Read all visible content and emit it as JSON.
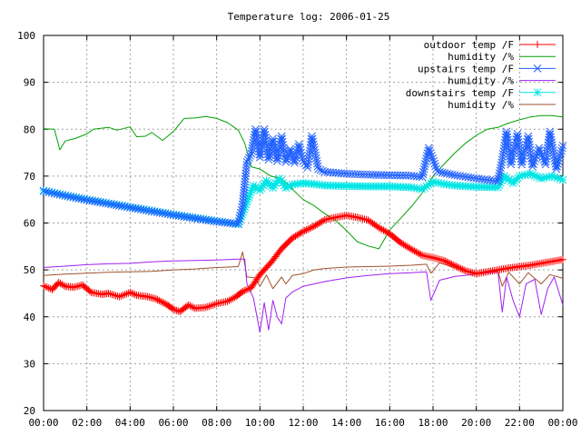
{
  "chart_data": {
    "type": "line",
    "title": "Temperature log: 2006-01-25",
    "xlabel": "",
    "ylabel": "",
    "xlim": [
      0,
      24
    ],
    "ylim": [
      20,
      100
    ],
    "grid": true,
    "legend_position": "top-right",
    "x_ticks": [
      0,
      2,
      4,
      6,
      8,
      10,
      12,
      14,
      16,
      18,
      20,
      22,
      24
    ],
    "x_tick_labels": [
      "00:00",
      "02:00",
      "04:00",
      "06:00",
      "08:00",
      "10:00",
      "12:00",
      "14:00",
      "16:00",
      "18:00",
      "20:00",
      "22:00",
      "00:00"
    ],
    "y_ticks": [
      20,
      30,
      40,
      50,
      60,
      70,
      80,
      90,
      100
    ],
    "y_tick_labels": [
      "20",
      "30",
      "40",
      "50",
      "60",
      "70",
      "80",
      "90",
      "100"
    ],
    "series": [
      {
        "name": "outdoor temp /F",
        "color": "#ff0000",
        "marker": "plus",
        "points": [
          [
            0,
            46.6
          ],
          [
            0.4,
            45.8
          ],
          [
            0.7,
            47.3
          ],
          [
            1.0,
            46.5
          ],
          [
            1.4,
            46.3
          ],
          [
            1.8,
            46.8
          ],
          [
            2.2,
            45.2
          ],
          [
            2.7,
            44.8
          ],
          [
            3.0,
            45.0
          ],
          [
            3.5,
            44.3
          ],
          [
            4.0,
            45.2
          ],
          [
            4.3,
            44.6
          ],
          [
            4.8,
            44.3
          ],
          [
            5.2,
            43.8
          ],
          [
            5.7,
            42.6
          ],
          [
            6.0,
            41.6
          ],
          [
            6.3,
            41.1
          ],
          [
            6.7,
            42.5
          ],
          [
            7.0,
            41.8
          ],
          [
            7.5,
            42.0
          ],
          [
            8.0,
            42.8
          ],
          [
            8.5,
            43.3
          ],
          [
            8.9,
            44.3
          ],
          [
            9.2,
            45.4
          ],
          [
            9.6,
            46.2
          ],
          [
            10.0,
            49.0
          ],
          [
            10.5,
            51.5
          ],
          [
            11.0,
            54.5
          ],
          [
            11.5,
            56.8
          ],
          [
            12.0,
            58.2
          ],
          [
            12.5,
            59.3
          ],
          [
            13.0,
            60.7
          ],
          [
            13.5,
            61.2
          ],
          [
            14.0,
            61.6
          ],
          [
            14.5,
            61.2
          ],
          [
            15.0,
            60.6
          ],
          [
            15.5,
            59.0
          ],
          [
            16.0,
            57.7
          ],
          [
            16.5,
            55.8
          ],
          [
            17.0,
            54.4
          ],
          [
            17.5,
            53.1
          ],
          [
            18.0,
            52.6
          ],
          [
            18.5,
            52.0
          ],
          [
            19.0,
            50.9
          ],
          [
            19.5,
            49.8
          ],
          [
            20.0,
            49.2
          ],
          [
            20.5,
            49.6
          ],
          [
            21.0,
            50.0
          ],
          [
            21.5,
            50.4
          ],
          [
            22.0,
            50.7
          ],
          [
            22.5,
            51.0
          ],
          [
            23.0,
            51.4
          ],
          [
            23.5,
            51.8
          ],
          [
            24.0,
            52.2
          ]
        ]
      },
      {
        "name": "humidity /%",
        "color": "#00a000",
        "marker": "none",
        "points": [
          [
            0,
            80.1
          ],
          [
            0.5,
            80.0
          ],
          [
            0.75,
            75.6
          ],
          [
            1.0,
            77.5
          ],
          [
            1.5,
            78.1
          ],
          [
            2.0,
            79.0
          ],
          [
            2.3,
            80.0
          ],
          [
            3.0,
            80.4
          ],
          [
            3.4,
            79.8
          ],
          [
            4.0,
            80.5
          ],
          [
            4.3,
            78.4
          ],
          [
            4.7,
            78.5
          ],
          [
            5.0,
            79.3
          ],
          [
            5.5,
            77.6
          ],
          [
            6.0,
            79.5
          ],
          [
            6.5,
            82.3
          ],
          [
            7.0,
            82.4
          ],
          [
            7.5,
            82.7
          ],
          [
            8.0,
            82.3
          ],
          [
            8.5,
            81.4
          ],
          [
            9.0,
            79.8
          ],
          [
            9.3,
            77.0
          ],
          [
            9.6,
            72.0
          ],
          [
            10.0,
            71.5
          ],
          [
            10.5,
            70.0
          ],
          [
            11.0,
            69.5
          ],
          [
            11.5,
            67.2
          ],
          [
            12.0,
            65.0
          ],
          [
            12.5,
            63.7
          ],
          [
            13.0,
            62.0
          ],
          [
            13.5,
            60.5
          ],
          [
            14.0,
            58.4
          ],
          [
            14.5,
            56.0
          ],
          [
            15.0,
            55.1
          ],
          [
            15.5,
            54.5
          ],
          [
            16.0,
            58.5
          ],
          [
            16.5,
            61.0
          ],
          [
            17.0,
            63.5
          ],
          [
            17.5,
            66.4
          ],
          [
            18.0,
            70.0
          ],
          [
            18.5,
            72.5
          ],
          [
            19.0,
            74.9
          ],
          [
            19.5,
            77.0
          ],
          [
            20.0,
            78.7
          ],
          [
            20.5,
            80.0
          ],
          [
            21.0,
            80.4
          ],
          [
            21.5,
            81.3
          ],
          [
            22.0,
            82.0
          ],
          [
            22.5,
            82.6
          ],
          [
            23.0,
            82.9
          ],
          [
            23.5,
            82.9
          ],
          [
            24.0,
            82.6
          ]
        ]
      },
      {
        "name": "upstairs temp /F",
        "color": "#2060ff",
        "marker": "cross",
        "points": [
          [
            0,
            66.8
          ],
          [
            1.0,
            65.8
          ],
          [
            2.0,
            64.9
          ],
          [
            3.0,
            64.1
          ],
          [
            4.0,
            63.3
          ],
          [
            5.0,
            62.5
          ],
          [
            6.0,
            61.7
          ],
          [
            7.0,
            61.0
          ],
          [
            8.0,
            60.3
          ],
          [
            9.0,
            59.8
          ],
          [
            9.2,
            64.0
          ],
          [
            9.4,
            73.0
          ],
          [
            9.6,
            74.8
          ],
          [
            9.8,
            80.0
          ],
          [
            10.0,
            74.0
          ],
          [
            10.2,
            80.0
          ],
          [
            10.4,
            73.5
          ],
          [
            10.6,
            78.0
          ],
          [
            10.8,
            73.2
          ],
          [
            11.0,
            78.5
          ],
          [
            11.2,
            73.0
          ],
          [
            11.4,
            75.8
          ],
          [
            11.6,
            72.8
          ],
          [
            11.8,
            76.8
          ],
          [
            12.0,
            73.2
          ],
          [
            12.2,
            71.8
          ],
          [
            12.4,
            78.5
          ],
          [
            12.7,
            71.5
          ],
          [
            13.0,
            70.9
          ],
          [
            14.0,
            70.5
          ],
          [
            15.0,
            70.3
          ],
          [
            16.0,
            70.2
          ],
          [
            17.0,
            70.1
          ],
          [
            17.5,
            69.8
          ],
          [
            17.8,
            76.0
          ],
          [
            18.2,
            71.0
          ],
          [
            19.0,
            70.2
          ],
          [
            20.0,
            69.5
          ],
          [
            21.0,
            68.9
          ],
          [
            21.2,
            73.5
          ],
          [
            21.4,
            79.5
          ],
          [
            21.6,
            72.5
          ],
          [
            21.9,
            79.0
          ],
          [
            22.1,
            72.5
          ],
          [
            22.4,
            78.5
          ],
          [
            22.6,
            72.0
          ],
          [
            22.9,
            76.0
          ],
          [
            23.2,
            72.5
          ],
          [
            23.4,
            79.5
          ],
          [
            23.7,
            71.5
          ],
          [
            24.0,
            76.5
          ]
        ]
      },
      {
        "name": "humidity /%",
        "color": "#a020f0",
        "marker": "none",
        "points": [
          [
            0,
            50.5
          ],
          [
            1.0,
            50.8
          ],
          [
            2.0,
            51.1
          ],
          [
            3.0,
            51.3
          ],
          [
            4.0,
            51.4
          ],
          [
            5.0,
            51.7
          ],
          [
            6.0,
            51.9
          ],
          [
            7.0,
            52.0
          ],
          [
            8.0,
            52.1
          ],
          [
            9.0,
            52.3
          ],
          [
            9.3,
            52.3
          ],
          [
            9.4,
            47.0
          ],
          [
            9.7,
            44.0
          ],
          [
            10.0,
            36.7
          ],
          [
            10.2,
            43.0
          ],
          [
            10.4,
            37.2
          ],
          [
            10.6,
            43.5
          ],
          [
            10.8,
            40.0
          ],
          [
            11.0,
            38.5
          ],
          [
            11.2,
            44.0
          ],
          [
            11.5,
            45.3
          ],
          [
            12.0,
            46.5
          ],
          [
            13.0,
            47.5
          ],
          [
            14.0,
            48.3
          ],
          [
            15.0,
            48.8
          ],
          [
            16.0,
            49.2
          ],
          [
            17.0,
            49.4
          ],
          [
            17.7,
            49.6
          ],
          [
            17.9,
            43.5
          ],
          [
            18.3,
            47.8
          ],
          [
            19.0,
            48.6
          ],
          [
            20.0,
            49.1
          ],
          [
            21.0,
            49.6
          ],
          [
            21.2,
            41.0
          ],
          [
            21.4,
            48.5
          ],
          [
            21.7,
            43.5
          ],
          [
            22.0,
            40.0
          ],
          [
            22.3,
            47.0
          ],
          [
            22.7,
            48.0
          ],
          [
            23.0,
            40.5
          ],
          [
            23.3,
            46.0
          ],
          [
            23.6,
            48.5
          ],
          [
            24.0,
            42.5
          ]
        ]
      },
      {
        "name": "downstairs temp /F",
        "color": "#00e5e5",
        "marker": "star",
        "points": [
          [
            0,
            66.9
          ],
          [
            1.0,
            65.9
          ],
          [
            2.0,
            65.0
          ],
          [
            3.0,
            64.2
          ],
          [
            4.0,
            63.4
          ],
          [
            5.0,
            62.6
          ],
          [
            6.0,
            61.8
          ],
          [
            7.0,
            61.1
          ],
          [
            8.0,
            60.4
          ],
          [
            9.0,
            59.7
          ],
          [
            9.4,
            64.5
          ],
          [
            9.7,
            68.0
          ],
          [
            10.0,
            67.0
          ],
          [
            10.3,
            69.0
          ],
          [
            10.6,
            67.5
          ],
          [
            10.9,
            69.5
          ],
          [
            11.2,
            67.5
          ],
          [
            11.5,
            68.2
          ],
          [
            12.0,
            68.5
          ],
          [
            12.5,
            68.3
          ],
          [
            13.0,
            68.0
          ],
          [
            14.0,
            67.9
          ],
          [
            15.0,
            67.8
          ],
          [
            16.0,
            67.8
          ],
          [
            17.0,
            67.6
          ],
          [
            17.5,
            67.2
          ],
          [
            18.0,
            68.8
          ],
          [
            18.5,
            68.3
          ],
          [
            19.0,
            68.0
          ],
          [
            20.0,
            67.7
          ],
          [
            21.0,
            67.6
          ],
          [
            21.3,
            70.0
          ],
          [
            21.7,
            68.5
          ],
          [
            22.0,
            70.0
          ],
          [
            22.5,
            70.5
          ],
          [
            23.0,
            69.5
          ],
          [
            23.5,
            70.0
          ],
          [
            24.0,
            69.2
          ]
        ]
      },
      {
        "name": "humidity /%",
        "color": "#a0522d",
        "marker": "none",
        "points": [
          [
            0,
            48.8
          ],
          [
            1.0,
            49.1
          ],
          [
            2.0,
            49.3
          ],
          [
            3.0,
            49.5
          ],
          [
            4.0,
            49.6
          ],
          [
            5.0,
            49.7
          ],
          [
            6.0,
            50.0
          ],
          [
            7.0,
            50.2
          ],
          [
            8.0,
            50.5
          ],
          [
            9.0,
            50.7
          ],
          [
            9.2,
            53.8
          ],
          [
            9.4,
            48.5
          ],
          [
            9.8,
            48.3
          ],
          [
            10.0,
            46.5
          ],
          [
            10.3,
            48.9
          ],
          [
            10.6,
            46.0
          ],
          [
            11.0,
            48.5
          ],
          [
            11.2,
            47.0
          ],
          [
            11.5,
            48.8
          ],
          [
            12.0,
            49.2
          ],
          [
            12.5,
            50.0
          ],
          [
            13.0,
            50.3
          ],
          [
            14.0,
            50.6
          ],
          [
            15.0,
            50.7
          ],
          [
            16.0,
            50.8
          ],
          [
            17.0,
            51.0
          ],
          [
            17.7,
            51.2
          ],
          [
            17.9,
            49.3
          ],
          [
            18.3,
            51.5
          ],
          [
            19.0,
            50.5
          ],
          [
            20.0,
            49.4
          ],
          [
            21.0,
            49.8
          ],
          [
            21.2,
            46.5
          ],
          [
            21.5,
            49.5
          ],
          [
            22.0,
            47.0
          ],
          [
            22.4,
            49.4
          ],
          [
            23.0,
            47.0
          ],
          [
            23.4,
            49.0
          ],
          [
            24.0,
            48.2
          ]
        ]
      }
    ]
  }
}
